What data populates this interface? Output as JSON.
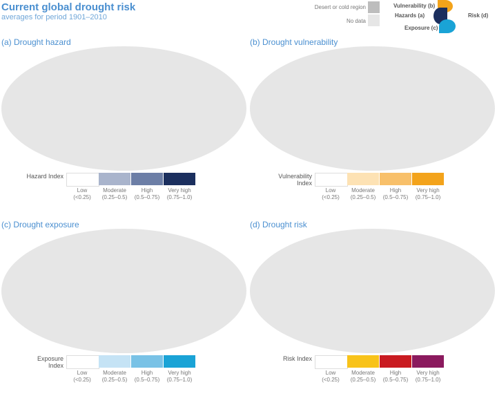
{
  "header": {
    "title": "Current global drought risk",
    "subtitle": "averages for period 1901–2010"
  },
  "key": {
    "desert_label": "Desert or cold region",
    "desert_color": "#bdbdbd",
    "nodata_label": "No data",
    "nodata_color": "#e6e6e6",
    "diagram": {
      "vulnerability": "Vulnerability (b)",
      "hazards": "Hazards (a)",
      "exposure": "Exposure (c)",
      "risk": "Risk (d)"
    }
  },
  "panels": [
    {
      "title": "(a) Drought hazard",
      "legend_title": "Hazard Index",
      "colors": [
        "#ffffff",
        "#a9b4cc",
        "#6c7ea6",
        "#1b2f5e"
      ]
    },
    {
      "title": "(b) Drought vulnerability",
      "legend_title": "Vulnerability Index",
      "colors": [
        "#ffffff",
        "#fde2b4",
        "#f8c06a",
        "#f3a31b"
      ]
    },
    {
      "title": "(c) Drought exposure",
      "legend_title": "Exposure Index",
      "colors": [
        "#ffffff",
        "#c5e3f5",
        "#79c2e6",
        "#1aa3d6"
      ]
    },
    {
      "title": "(d) Drought risk",
      "legend_title": "Risk Index",
      "colors": [
        "#ffffff",
        "#f8c31a",
        "#c91b21",
        "#8b1a5e"
      ]
    }
  ],
  "classes": [
    {
      "label": "Low",
      "range": "(<0.25)"
    },
    {
      "label": "Moderate",
      "range": "(0.25–0.5)"
    },
    {
      "label": "High",
      "range": "(0.5–0.75)"
    },
    {
      "label": "Very high",
      "range": "(0.75–1.0)"
    }
  ]
}
